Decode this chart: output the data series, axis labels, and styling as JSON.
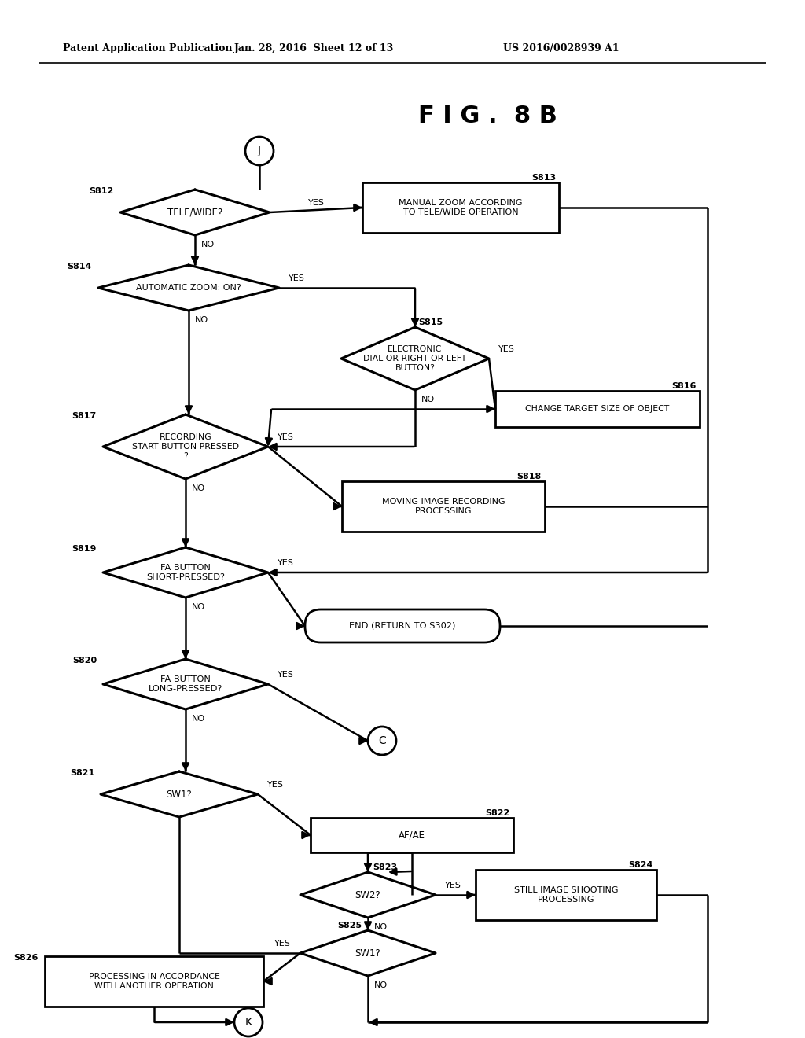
{
  "title": "F I G .  8 B",
  "header_left": "Patent Application Publication",
  "header_mid": "Jan. 28, 2016  Sheet 12 of 13",
  "header_right": "US 2016/0028939 A1",
  "bg_color": "#ffffff",
  "lc": "#000000",
  "tc": "#000000",
  "figw": 10.24,
  "figh": 13.2,
  "dpi": 100
}
